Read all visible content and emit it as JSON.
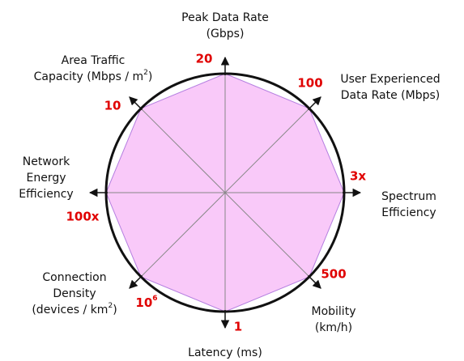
{
  "axes": [
    {
      "label": [
        "Peak Data Rate",
        "(Gbps)"
      ],
      "value": "20"
    },
    {
      "label": [
        "User Experienced",
        "Data Rate (Mbps)"
      ],
      "value": "100"
    },
    {
      "label": [
        "Spectrum",
        "Efficiency"
      ],
      "value": "3x"
    },
    {
      "label": [
        "Mobility",
        "(km/h)"
      ],
      "value": "500"
    },
    {
      "label": [
        "Latency (ms)"
      ],
      "value": "1"
    },
    {
      "label": [
        "Connection",
        "Density",
        {
          "base": "(devices / km",
          "sup": "2",
          "after": ")"
        }
      ],
      "value": {
        "base": "10",
        "sup": "6"
      }
    },
    {
      "label": [
        "Network",
        "Energy",
        "Efficiency"
      ],
      "value": "100x"
    },
    {
      "label": [
        "Area Traffic",
        {
          "base": "Capacity (Mbps / m",
          "sup": "2",
          "after": ")"
        }
      ],
      "value": "10"
    }
  ]
}
